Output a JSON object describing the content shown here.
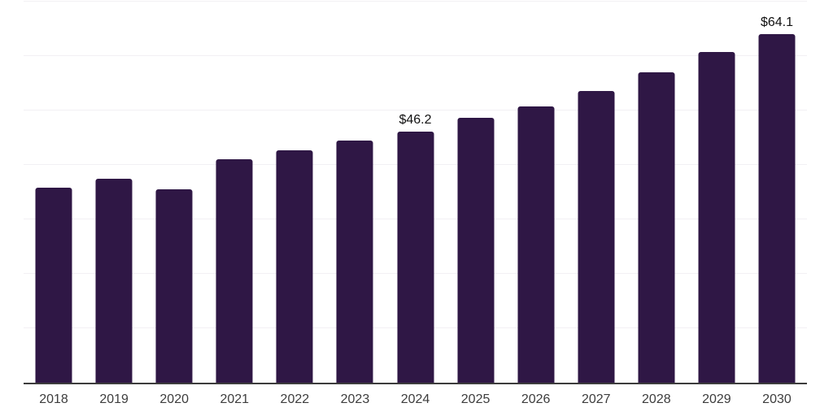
{
  "chart_data": {
    "type": "bar",
    "title": "",
    "xlabel": "",
    "ylabel": "",
    "categories": [
      "2018",
      "2019",
      "2020",
      "2021",
      "2022",
      "2023",
      "2024",
      "2025",
      "2026",
      "2027",
      "2028",
      "2029",
      "2030"
    ],
    "values": [
      35.8,
      37.5,
      35.6,
      41.0,
      42.7,
      44.5,
      46.2,
      48.6,
      50.7,
      53.6,
      57.0,
      60.7,
      64.1
    ],
    "data_labels": [
      "",
      "",
      "",
      "",
      "",
      "",
      "$46.2",
      "",
      "",
      "",
      "",
      "",
      "$64.1"
    ],
    "ylim": [
      0,
      70
    ],
    "gridline_step": 10,
    "grid": true,
    "legend_position": "none",
    "bar_color": "#2f1745",
    "gridline_color": "#f2f0f4",
    "axis_line_color": "#3d3d3d",
    "tick_label_color": "#3d3d3d",
    "data_label_color": "#111111",
    "background_color": "#ffffff"
  }
}
